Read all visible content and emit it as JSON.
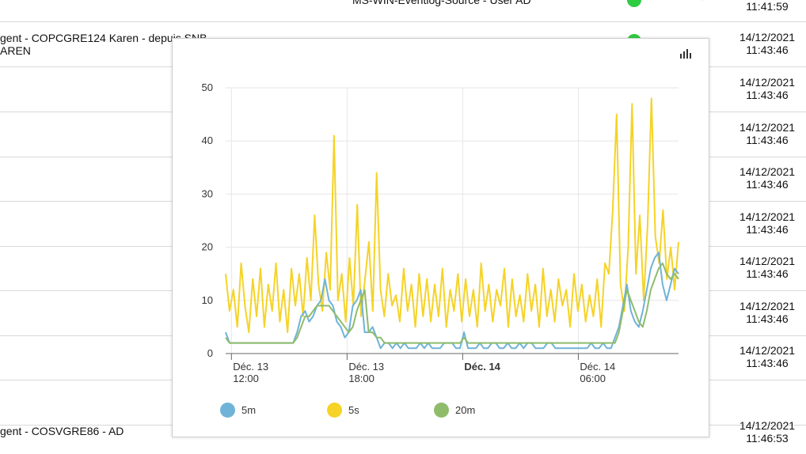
{
  "background": {
    "top_text": "MS-WIN-Eventlog-Source - User AD",
    "rows": [
      {
        "left_line1": "",
        "left_line2": "",
        "date": "",
        "time": "11:41:59"
      },
      {
        "left_line1": "gent - COPCGRE124 Karen - depuis SNB",
        "left_line2": "AREN",
        "date": "14/12/2021",
        "time": "11:43:46"
      },
      {
        "left_line1": "",
        "left_line2": "",
        "date": "14/12/2021",
        "time": "11:43:46"
      },
      {
        "left_line1": "",
        "left_line2": "",
        "date": "14/12/2021",
        "time": "11:43:46"
      },
      {
        "left_line1": "",
        "left_line2": "",
        "date": "14/12/2021",
        "time": "11:43:46"
      },
      {
        "left_line1": "",
        "left_line2": "",
        "date": "14/12/2021",
        "time": "11:43:46"
      },
      {
        "left_line1": "",
        "left_line2": "",
        "date": "14/12/2021",
        "time": "11:43:46"
      },
      {
        "left_line1": "",
        "left_line2": "",
        "date": "14/12/2021",
        "time": "11:43:46"
      },
      {
        "left_line1": "",
        "left_line2": "",
        "date": "14/12/2021",
        "time": "11:43:46"
      },
      {
        "left_line1": "gent - COSVGRE86 - AD",
        "left_line2": "",
        "date": "14/12/2021",
        "time": "11:46:53"
      }
    ],
    "status_color": "#2ecc40",
    "row_icon": "mute-bell-icon"
  },
  "chart_data": {
    "type": "line",
    "title": "",
    "xlabel": "",
    "ylabel": "",
    "ylim": [
      0,
      50
    ],
    "y_ticks": [
      "0",
      "10",
      "20",
      "30",
      "40",
      "50"
    ],
    "x_ticks": [
      {
        "line1": "Déc. 13",
        "line2": "12:00",
        "bold": false
      },
      {
        "line1": "Déc. 13",
        "line2": "18:00",
        "bold": false
      },
      {
        "line1": "Déc. 14",
        "line2": "",
        "bold": true
      },
      {
        "line1": "Déc. 14",
        "line2": "06:00",
        "bold": false
      }
    ],
    "x_tick_hours": [
      0,
      6,
      12,
      18
    ],
    "x_range_hours": [
      -0.3,
      23.2
    ],
    "grid": true,
    "legend_position": "bottom",
    "series": [
      {
        "name": "5m",
        "color": "#6fb3d8",
        "values": [
          4,
          2,
          2,
          2,
          2,
          2,
          2,
          2,
          2,
          2,
          2,
          2,
          2,
          2,
          2,
          2,
          2,
          2,
          4,
          7,
          8,
          6,
          7,
          9,
          10,
          14,
          10,
          9,
          6,
          5,
          3,
          4,
          9,
          10,
          12,
          4,
          4,
          5,
          3,
          1,
          2,
          2,
          1,
          2,
          1,
          2,
          1,
          1,
          1,
          2,
          1,
          2,
          1,
          1,
          1,
          2,
          2,
          2,
          1,
          1,
          4,
          1,
          1,
          1,
          2,
          1,
          1,
          2,
          2,
          1,
          1,
          2,
          1,
          1,
          2,
          1,
          2,
          2,
          1,
          1,
          1,
          2,
          2,
          1,
          1,
          1,
          1,
          1,
          1,
          1,
          1,
          1,
          2,
          1,
          1,
          2,
          1,
          1,
          3,
          5,
          9,
          13,
          8,
          6,
          5,
          8,
          12,
          16,
          18,
          19,
          13,
          10,
          13,
          16,
          15
        ]
      },
      {
        "name": "5s",
        "color": "#f5d327",
        "values": [
          15,
          8,
          12,
          5,
          17,
          9,
          4,
          14,
          7,
          16,
          5,
          13,
          8,
          17,
          6,
          12,
          4,
          16,
          9,
          15,
          7,
          18,
          10,
          26,
          13,
          8,
          19,
          12,
          41,
          10,
          15,
          6,
          18,
          9,
          28,
          7,
          14,
          21,
          8,
          34,
          12,
          7,
          15,
          9,
          11,
          6,
          16,
          8,
          13,
          5,
          15,
          7,
          14,
          6,
          13,
          7,
          16,
          5,
          12,
          8,
          15,
          6,
          14,
          7,
          12,
          5,
          17,
          8,
          13,
          6,
          12,
          9,
          16,
          5,
          14,
          7,
          11,
          6,
          15,
          8,
          13,
          5,
          16,
          7,
          12,
          6,
          14,
          9,
          12,
          5,
          15,
          8,
          13,
          6,
          11,
          7,
          14,
          5,
          17,
          15,
          27,
          45,
          13,
          8,
          20,
          47,
          15,
          26,
          10,
          24,
          48,
          22,
          17,
          27,
          14,
          20,
          12,
          21
        ]
      },
      {
        "name": "20m",
        "color": "#8fbc6b",
        "values": [
          3,
          2,
          2,
          2,
          2,
          2,
          2,
          2,
          2,
          2,
          2,
          2,
          2,
          2,
          2,
          2,
          2,
          2,
          3,
          5,
          7,
          7,
          8,
          9,
          9,
          9,
          9,
          8,
          7,
          6,
          5,
          4,
          5,
          8,
          10,
          12,
          4,
          4,
          3,
          3,
          2,
          2,
          2,
          2,
          2,
          2,
          2,
          2,
          2,
          2,
          2,
          2,
          2,
          2,
          2,
          2,
          2,
          2,
          2,
          2,
          3,
          2,
          2,
          2,
          2,
          2,
          2,
          2,
          2,
          2,
          2,
          2,
          2,
          2,
          2,
          2,
          2,
          2,
          2,
          2,
          2,
          2,
          2,
          2,
          2,
          2,
          2,
          2,
          2,
          2,
          2,
          2,
          2,
          2,
          2,
          2,
          2,
          2,
          2,
          4,
          8,
          12,
          10,
          8,
          6,
          5,
          8,
          12,
          14,
          16,
          17,
          15,
          14,
          15,
          14
        ]
      }
    ]
  }
}
